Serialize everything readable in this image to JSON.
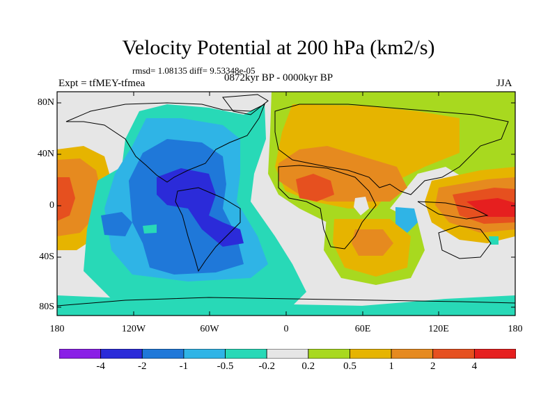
{
  "title": "Velocity Potential at 200 hPa (km2/s)",
  "stats": "rmsd= 1.08135 diff= 9.53348e-05",
  "experiment": "Expt = tfMEY-tfmea",
  "period": "0872kyr BP - 0000kyr BP",
  "season": "JJA",
  "y_axis": {
    "ticks": [
      "80N",
      "40N",
      "0",
      "40S",
      "80S"
    ]
  },
  "x_axis": {
    "ticks": [
      "180",
      "120W",
      "60W",
      "0",
      "60E",
      "120E",
      "180"
    ]
  },
  "colorbar": {
    "labels": [
      "-4",
      "-2",
      "-1",
      "-0.5",
      "-0.2",
      "0.2",
      "0.5",
      "1",
      "2",
      "4"
    ],
    "colors": [
      "#8a1fe6",
      "#2b2bd9",
      "#1f78d9",
      "#2fb4e6",
      "#28d9b7",
      "#e6e6e6",
      "#a8d91f",
      "#e6b400",
      "#e68a1f",
      "#e6501f",
      "#e61f1f"
    ]
  },
  "chart_data": {
    "type": "heatmap",
    "title": "Velocity Potential at 200 hPa (km2/s)",
    "variable": "velocity potential difference",
    "units": "km2/s",
    "level": "200 hPa",
    "season": "JJA",
    "x_range": [
      -180,
      180
    ],
    "y_range": [
      -90,
      90
    ],
    "contour_levels": [
      -4,
      -2,
      -1,
      -0.5,
      -0.2,
      0.2,
      0.5,
      1,
      2,
      4
    ],
    "features": [
      {
        "region": "tropical Atlantic / South America",
        "lon": -70,
        "lat": 5,
        "value_range": [
          -4,
          -2
        ]
      },
      {
        "region": "eastern Pacific / Americas",
        "lon": -80,
        "lat": 0,
        "value_range": [
          -2,
          -1
        ]
      },
      {
        "region": "North Africa / Middle East",
        "lon": 25,
        "lat": 10,
        "value_range": [
          2,
          4
        ]
      },
      {
        "region": "Maritime Continent / West Pacific",
        "lon": 145,
        "lat": -5,
        "value_range": [
          2,
          4
        ]
      },
      {
        "region": "southern Africa",
        "lon": 30,
        "lat": -25,
        "value_range": [
          1,
          2
        ]
      },
      {
        "region": "central Pacific (180)",
        "lon": 180,
        "lat": 5,
        "value_range": [
          1,
          2
        ]
      },
      {
        "region": "Indian Ocean",
        "lon": 95,
        "lat": -10,
        "value_range": [
          -1,
          -0.5
        ]
      },
      {
        "region": "Eurasia",
        "lon": 60,
        "lat": 50,
        "value_range": [
          0.5,
          1
        ]
      }
    ]
  }
}
